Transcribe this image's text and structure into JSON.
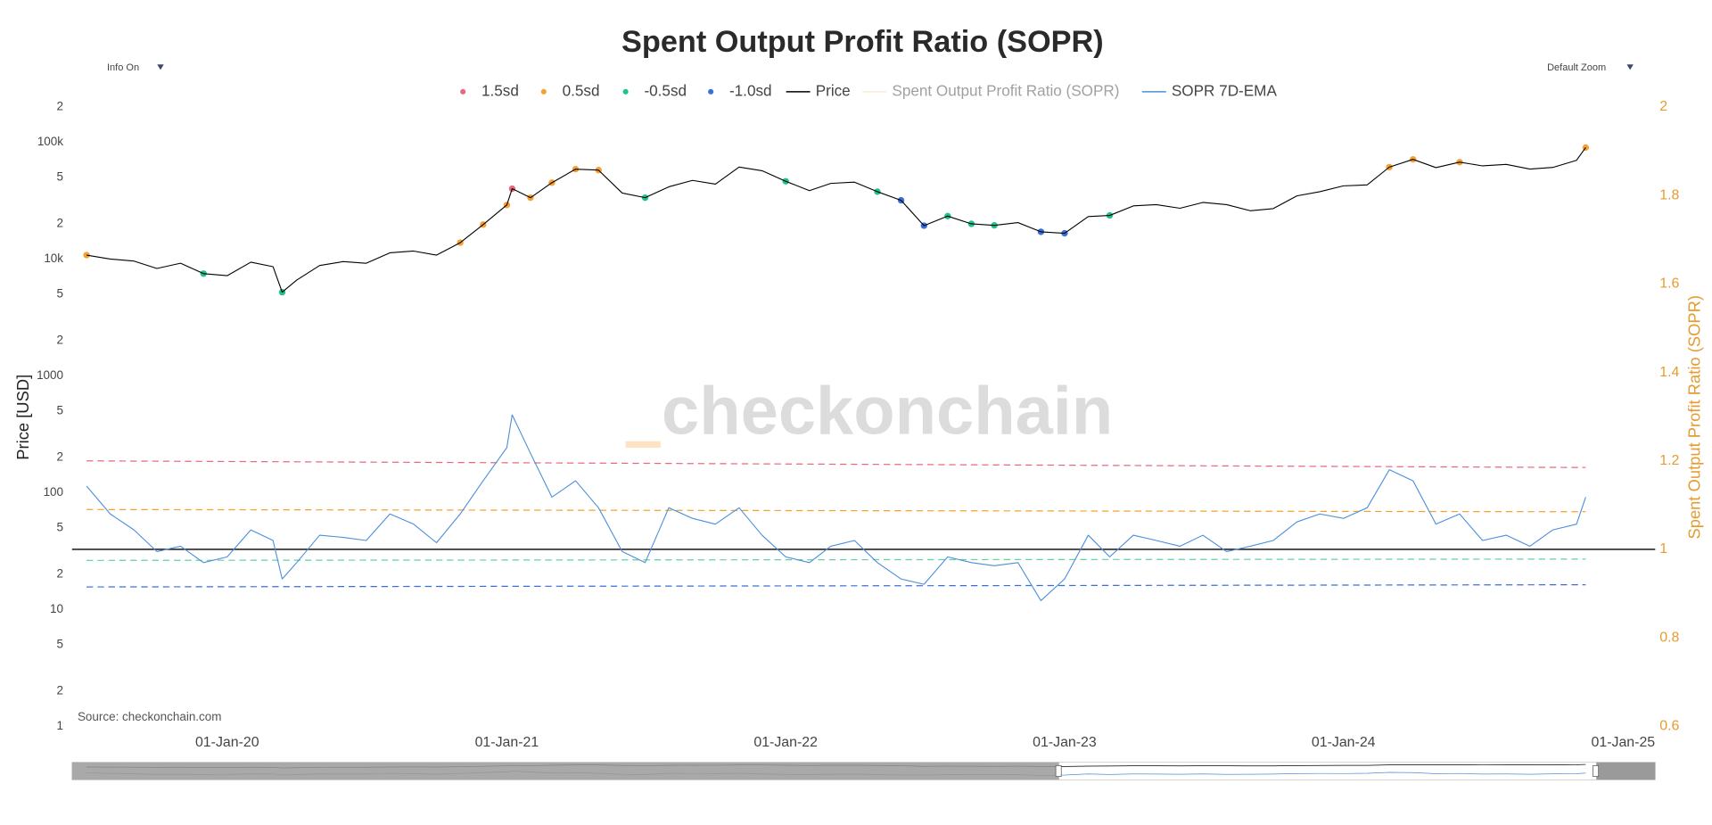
{
  "chart_data": {
    "type": "line",
    "title": "Spent Output Profit Ratio (SOPR)",
    "controls": [
      "Info On",
      "Default Zoom"
    ],
    "source": "Source: checkonchain.com",
    "watermark": "checkonchain",
    "y_label": "Price [USD]",
    "y2_label": "Spent Output Profit Ratio (SOPR)",
    "ylog": true,
    "xlim": [
      "2019-06-12",
      "2025-02-12"
    ],
    "xticks": [
      {
        "value": "2020-01-01",
        "label": "01-Jan-20"
      },
      {
        "value": "2021-01-01",
        "label": "01-Jan-21"
      },
      {
        "value": "2022-01-01",
        "label": "01-Jan-22"
      },
      {
        "value": "2023-01-01",
        "label": "01-Jan-23"
      },
      {
        "value": "2024-01-01",
        "label": "01-Jan-24"
      },
      {
        "value": "2025-01-01",
        "label": "01-Jan-25"
      }
    ],
    "ylim": [
      1,
      200000
    ],
    "yticks": [
      1,
      {
        "value": 2,
        "label": "2"
      },
      {
        "value": 5,
        "label": "5"
      },
      10,
      {
        "value": 20,
        "label": "2"
      },
      {
        "value": 50,
        "label": "5"
      },
      100,
      {
        "value": 200,
        "label": "2"
      },
      {
        "value": 500,
        "label": "5"
      },
      1000,
      {
        "value": 2000,
        "label": "2"
      },
      {
        "value": 5000,
        "label": "5"
      },
      {
        "value": 10000,
        "label": "10k"
      },
      {
        "value": 20000,
        "label": "2"
      },
      {
        "value": 50000,
        "label": "5"
      },
      {
        "value": 100000,
        "label": "100k"
      },
      {
        "value": 200000,
        "label": "2"
      }
    ],
    "y2lim": [
      0.6,
      2
    ],
    "y2ticks": [
      0.6,
      0.8,
      1,
      1.2,
      1.4,
      1.6,
      1.8,
      2
    ],
    "x": [
      "2019-07-01",
      "2019-08-01",
      "2019-09-01",
      "2019-10-01",
      "2019-11-01",
      "2019-12-01",
      "2020-01-01",
      "2020-02-01",
      "2020-03-01",
      "2020-03-13",
      "2020-04-01",
      "2020-05-01",
      "2020-06-01",
      "2020-07-01",
      "2020-08-01",
      "2020-09-01",
      "2020-10-01",
      "2020-11-01",
      "2020-12-01",
      "2021-01-01",
      "2021-01-08",
      "2021-02-01",
      "2021-03-01",
      "2021-04-01",
      "2021-05-01",
      "2021-06-01",
      "2021-07-01",
      "2021-08-01",
      "2021-09-01",
      "2021-10-01",
      "2021-11-01",
      "2021-12-01",
      "2022-01-01",
      "2022-02-01",
      "2022-03-01",
      "2022-04-01",
      "2022-05-01",
      "2022-06-01",
      "2022-07-01",
      "2022-08-01",
      "2022-09-01",
      "2022-10-01",
      "2022-11-01",
      "2022-12-01",
      "2023-01-01",
      "2023-02-01",
      "2023-03-01",
      "2023-04-01",
      "2023-05-01",
      "2023-06-01",
      "2023-07-01",
      "2023-08-01",
      "2023-09-01",
      "2023-10-01",
      "2023-11-01",
      "2023-12-01",
      "2024-01-01",
      "2024-02-01",
      "2024-03-01",
      "2024-04-01",
      "2024-05-01",
      "2024-06-01",
      "2024-07-01",
      "2024-08-01",
      "2024-09-01",
      "2024-10-01",
      "2024-11-01",
      "2024-11-13"
    ],
    "series": [
      {
        "name": "1.5sd",
        "color": "#e8697d",
        "mode": "markers",
        "x": [
          "2021-01-08"
        ],
        "values": [
          40000
        ]
      },
      {
        "name": "0.5sd",
        "color": "#f5a030",
        "mode": "markers",
        "x": [
          "2019-07-01",
          "2020-11-01",
          "2020-12-01",
          "2021-01-01",
          "2021-02-01",
          "2021-03-01",
          "2021-04-01",
          "2021-05-01",
          "2024-03-01",
          "2024-04-01",
          "2024-06-01",
          "2024-11-13"
        ],
        "values": [
          10800,
          13800,
          19700,
          29000,
          33500,
          45000,
          58800,
          57700,
          61200,
          71300,
          67500,
          90000
        ]
      },
      {
        "name": "-0.5sd",
        "color": "#1fc28a",
        "mode": "markers",
        "x": [
          "2019-12-01",
          "2020-03-13",
          "2021-07-01",
          "2022-01-01",
          "2022-05-01",
          "2022-08-01",
          "2022-09-01",
          "2022-10-01",
          "2023-03-01"
        ],
        "values": [
          7500,
          5200,
          33500,
          46300,
          37700,
          23300,
          20000,
          19400,
          23600
        ]
      },
      {
        "name": "-1.0sd",
        "color": "#3a6fd8",
        "mode": "markers",
        "x": [
          "2022-06-01",
          "2022-07-01",
          "2022-12-01",
          "2023-01-01"
        ],
        "values": [
          31800,
          19300,
          17100,
          16600
        ]
      },
      {
        "name": "Price",
        "color": "#000000",
        "mode": "line",
        "values": [
          10800,
          10000,
          9600,
          8300,
          9200,
          7500,
          7200,
          9400,
          8600,
          5200,
          6600,
          8800,
          9500,
          9200,
          11300,
          11700,
          10800,
          13800,
          19700,
          29000,
          40000,
          33500,
          45000,
          58800,
          57700,
          36700,
          33500,
          41500,
          47100,
          43800,
          61300,
          57000,
          46300,
          38500,
          44400,
          45500,
          37700,
          31800,
          19300,
          23300,
          20000,
          19400,
          20500,
          17100,
          16600,
          23100,
          23600,
          28500,
          29200,
          27200,
          30500,
          29200,
          25900,
          27000,
          34700,
          37700,
          42300,
          43100,
          61200,
          71300,
          60600,
          67500,
          62700,
          64600,
          58900,
          60800,
          70000,
          90000
        ]
      },
      {
        "name": "Spent Output Profit Ratio (SOPR)",
        "color": "#f5d9a8",
        "mode": "line",
        "visible": false
      },
      {
        "name": "SOPR 7D-EMA",
        "color": "#4a8fdb",
        "mode": "line",
        "axis": "y2",
        "values": [
          1.143,
          1.08,
          1.044,
          0.995,
          1.007,
          0.97,
          0.983,
          1.044,
          1.02,
          0.933,
          0.97,
          1.032,
          1.027,
          1.02,
          1.08,
          1.057,
          1.015,
          1.08,
          1.155,
          1.23,
          1.304,
          1.217,
          1.118,
          1.155,
          1.094,
          0.995,
          0.97,
          1.094,
          1.07,
          1.057,
          1.094,
          1.032,
          0.983,
          0.97,
          1.007,
          1.02,
          0.97,
          0.933,
          0.921,
          0.983,
          0.97,
          0.963,
          0.97,
          0.884,
          0.933,
          1.032,
          0.983,
          1.032,
          1.02,
          1.007,
          1.032,
          0.995,
          1.007,
          1.02,
          1.062,
          1.08,
          1.07,
          1.094,
          1.18,
          1.155,
          1.057,
          1.08,
          1.02,
          1.032,
          1.007,
          1.044,
          1.057,
          1.118
        ]
      }
    ],
    "reference_lines": [
      {
        "color": "#e8697d",
        "dash": true,
        "x": [
          "2019-07-01",
          "2024-11-13"
        ],
        "values": [
          1.2,
          1.185
        ]
      },
      {
        "color": "#f5a030",
        "dash": true,
        "x": [
          "2019-07-01",
          "2024-11-13"
        ],
        "values": [
          1.09,
          1.085
        ]
      },
      {
        "color": "#5fd3a4",
        "dash": true,
        "x": [
          "2019-07-01",
          "2024-11-13"
        ],
        "values": [
          0.975,
          0.978
        ]
      },
      {
        "color": "#3a6fd8",
        "dash": true,
        "x": [
          "2019-07-01",
          "2024-11-13"
        ],
        "values": [
          0.915,
          0.92
        ]
      },
      {
        "color": "#000000",
        "dash": false,
        "x": [
          "2019-06-12",
          "2025-02-12"
        ],
        "values": [
          1,
          1
        ]
      }
    ]
  }
}
